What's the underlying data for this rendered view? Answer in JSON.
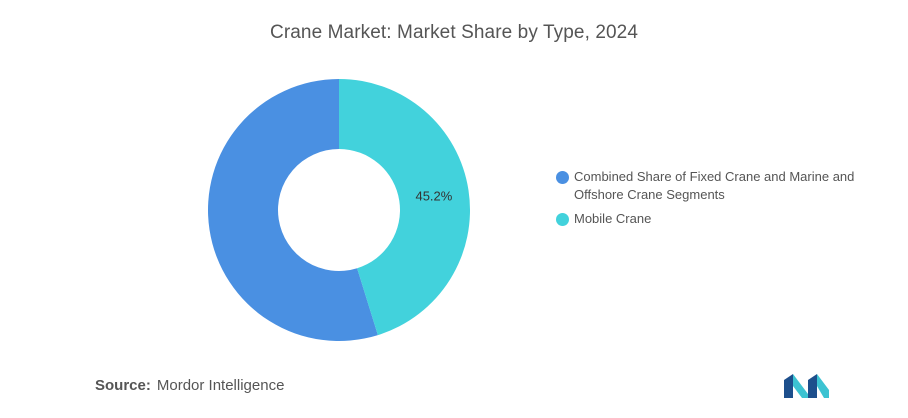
{
  "chart_data": {
    "type": "pie",
    "title": "Crane Market: Market Share by Type, 2024",
    "categories": [
      "Combined Share of Fixed Crane and Marine and Offshore Crane Segments",
      "Mobile Crane"
    ],
    "values": [
      54.8,
      45.2
    ],
    "data_labels": [
      "",
      "45.2%"
    ],
    "colors": [
      "#4a90e2",
      "#42d2dc"
    ],
    "donut": true,
    "legend_position": "right"
  },
  "source": {
    "label": "Source:",
    "value": "Mordor Intelligence"
  },
  "logo": {
    "icon": "mordor-intelligence-logo-icon",
    "colors": [
      "#1d4f8c",
      "#3cc3d2"
    ]
  }
}
